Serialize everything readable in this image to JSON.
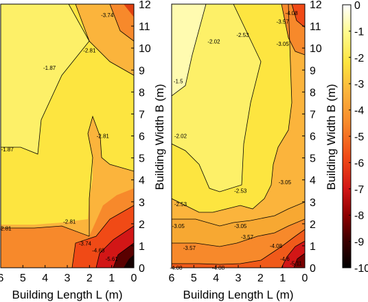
{
  "chart_data": [
    {
      "type": "contour",
      "xlabel": "Building Length L (m)",
      "ylabel": "Building Width B (m)",
      "x_ticks": [
        "6",
        "5",
        "4",
        "3",
        "2",
        "1",
        "0"
      ],
      "y_ticks": [
        "0",
        "1",
        "2",
        "3",
        "4",
        "5",
        "6",
        "7",
        "8",
        "9",
        "10",
        "11",
        "12"
      ],
      "xlim": [
        6,
        0
      ],
      "ylim": [
        0,
        12
      ],
      "grid": false,
      "contour_levels": [
        -1.87,
        -2.81,
        -3.74,
        -4.68,
        -5.61
      ],
      "contour_labels": [
        {
          "text": "-1.87",
          "x": 3.8,
          "y": 9.1
        },
        {
          "text": "-1.87",
          "x": 5.7,
          "y": 5.4
        },
        {
          "text": "-2.81",
          "x": 2.0,
          "y": 9.9
        },
        {
          "text": "-2.81",
          "x": 1.4,
          "y": 6.0
        },
        {
          "text": "-2.81",
          "x": 5.8,
          "y": 1.8
        },
        {
          "text": "-2.81",
          "x": 2.9,
          "y": 2.1
        },
        {
          "text": "-3.74",
          "x": 1.2,
          "y": 11.5
        },
        {
          "text": "-3.74",
          "x": 2.2,
          "y": 1.1
        },
        {
          "text": "-4.68",
          "x": 1.6,
          "y": 0.8
        },
        {
          "text": "-5.61",
          "x": 1.0,
          "y": 0.4
        }
      ]
    },
    {
      "type": "contour",
      "xlabel": "Building Length L (m)",
      "ylabel": "Building Width B (m)",
      "x_ticks": [
        "6",
        "5",
        "4",
        "3",
        "2",
        "1",
        "0"
      ],
      "y_ticks": [
        "0",
        "1",
        "2",
        "3",
        "4",
        "5",
        "6",
        "7",
        "8",
        "9",
        "10",
        "11",
        "12"
      ],
      "xlim": [
        6,
        0
      ],
      "ylim": [
        0,
        12
      ],
      "grid": false,
      "contour_levels": [
        -1.5,
        -2.02,
        -2.53,
        -3.05,
        -3.57,
        -4.08,
        -4.6,
        -5.11
      ],
      "contour_labels": [
        {
          "text": "-1.5",
          "x": 5.7,
          "y": 8.5
        },
        {
          "text": "-2.02",
          "x": 4.1,
          "y": 10.3
        },
        {
          "text": "-2.02",
          "x": 5.6,
          "y": 6.0
        },
        {
          "text": "-2.53",
          "x": 2.8,
          "y": 10.6
        },
        {
          "text": "-2.53",
          "x": 5.6,
          "y": 2.9
        },
        {
          "text": "-2.53",
          "x": 2.9,
          "y": 3.5
        },
        {
          "text": "-3.05",
          "x": 1.0,
          "y": 10.2
        },
        {
          "text": "-3.05",
          "x": 0.9,
          "y": 3.9
        },
        {
          "text": "-3.05",
          "x": 5.7,
          "y": 1.9
        },
        {
          "text": "-3.05",
          "x": 2.9,
          "y": 1.9
        },
        {
          "text": "-3.57",
          "x": 1.0,
          "y": 11.2
        },
        {
          "text": "-3.57",
          "x": 5.2,
          "y": 0.9
        },
        {
          "text": "-3.57",
          "x": 2.6,
          "y": 1.4
        },
        {
          "text": "-4.08",
          "x": 0.6,
          "y": 11.6
        },
        {
          "text": "-4.08",
          "x": 5.8,
          "y": 0.0
        },
        {
          "text": "-4.08",
          "x": 3.9,
          "y": 0.0
        },
        {
          "text": "-4.08",
          "x": 1.3,
          "y": 1.0
        },
        {
          "text": "-4.6",
          "x": 0.9,
          "y": 0.4
        },
        {
          "text": "-5.11",
          "x": 0.4,
          "y": 0.2
        }
      ]
    },
    {
      "type": "colorbar",
      "ticks": [
        "0",
        "-1",
        "-2",
        "-3",
        "-4",
        "-5",
        "-6",
        "-7",
        "-8",
        "-9",
        "-10"
      ],
      "range": [
        -10,
        0
      ],
      "colormap": [
        "#000000",
        "#3a0000",
        "#8e0000",
        "#d21616",
        "#f04a16",
        "#f7892b",
        "#fbb43c",
        "#fde43e",
        "#fffb92",
        "#ffffff"
      ]
    }
  ]
}
